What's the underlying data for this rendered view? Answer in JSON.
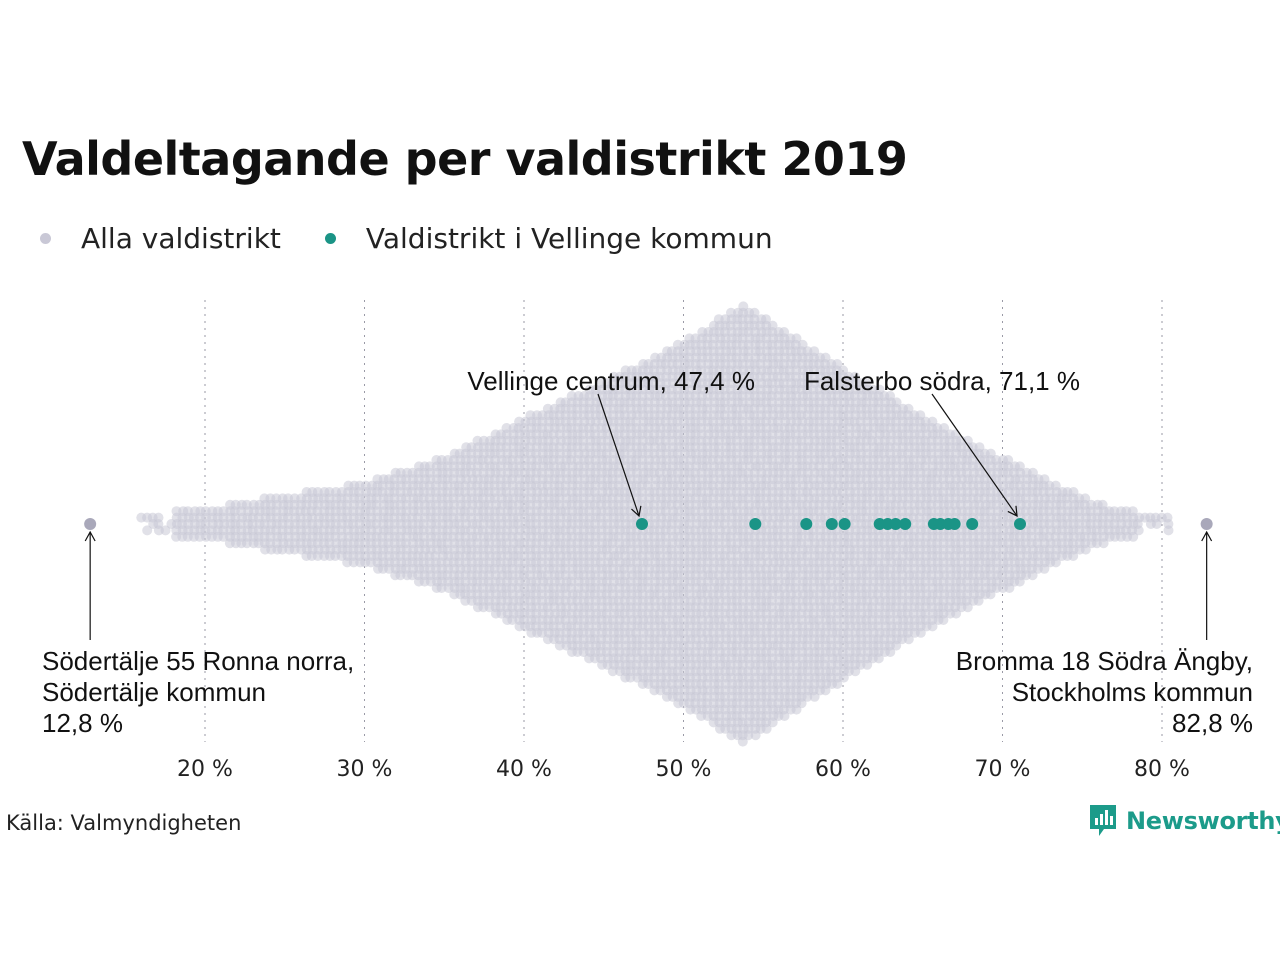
{
  "title": "Valdeltagande per valdistrikt 2019",
  "legend": [
    {
      "label": "Alla valdistrikt",
      "color": "#c9c8d6"
    },
    {
      "label": "Valdistrikt i Vellinge kommun",
      "color": "#1a9486"
    }
  ],
  "source": "Källa: Valmyndigheten",
  "brand": {
    "name": "Newsworthy",
    "logo_icon": "newsworthy-logo-icon"
  },
  "chart_data": {
    "type": "scatter",
    "subtype": "beeswarm",
    "xlim": [
      12.8,
      82.8
    ],
    "x_ticks": [
      20,
      30,
      40,
      50,
      60,
      70,
      80
    ],
    "x_tick_labels": [
      "20 %",
      "30 %",
      "40 %",
      "50 %",
      "60 %",
      "70 %",
      "80 %"
    ],
    "grid": "vertical dotted",
    "series": [
      {
        "name": "Alla valdistrikt",
        "color": "#c9c8d6",
        "density_profile": [
          [
            12.8,
            0
          ],
          [
            16,
            1
          ],
          [
            20,
            2
          ],
          [
            25,
            4
          ],
          [
            30,
            6
          ],
          [
            35,
            10
          ],
          [
            40,
            16
          ],
          [
            45,
            22
          ],
          [
            50,
            28
          ],
          [
            53.8,
            34
          ],
          [
            58,
            27
          ],
          [
            62,
            21
          ],
          [
            66,
            15
          ],
          [
            70,
            10
          ],
          [
            74,
            5
          ],
          [
            77,
            2
          ],
          [
            80,
            1
          ],
          [
            82.8,
            0
          ]
        ]
      },
      {
        "name": "Valdistrikt i Vellinge kommun",
        "color": "#1a9486",
        "values": [
          47.4,
          54.5,
          57.7,
          59.3,
          60.1,
          62.3,
          62.8,
          63.3,
          63.9,
          65.7,
          66.1,
          66.6,
          67.0,
          68.1,
          71.1
        ]
      }
    ],
    "annotations": [
      {
        "lines": [
          "Vellinge centrum, 47,4 %"
        ],
        "x": 47.4,
        "series": "Valdistrikt i Vellinge kommun"
      },
      {
        "lines": [
          "Falsterbo södra, 71,1 %"
        ],
        "x": 71.1,
        "series": "Valdistrikt i Vellinge kommun"
      },
      {
        "lines": [
          "Södertälje 55 Ronna norra,",
          "Södertälje kommun",
          "12,8 %"
        ],
        "x": 12.8,
        "series": "Alla valdistrikt"
      },
      {
        "lines": [
          "Bromma 18 Södra Ängby,",
          "Stockholms kommun",
          "82,8 %"
        ],
        "x": 82.8,
        "series": "Alla valdistrikt"
      }
    ]
  }
}
